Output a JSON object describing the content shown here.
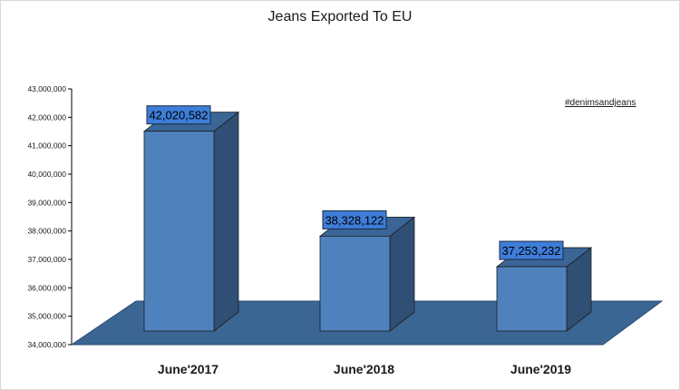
{
  "chart_data": {
    "type": "bar",
    "title": "Jeans Exported To EU",
    "annotation": "#denimsandjeans",
    "categories": [
      "June'2017",
      "June'2018",
      "June'2019"
    ],
    "values": [
      42020582,
      38328122,
      37253232
    ],
    "data_labels": [
      "42,020,582",
      "38,328,122",
      "37,253,232"
    ],
    "ylim": [
      34000000,
      43000000
    ],
    "yticks": [
      34000000,
      35000000,
      36000000,
      37000000,
      38000000,
      39000000,
      40000000,
      41000000,
      42000000,
      43000000
    ],
    "ytick_labels": [
      "34,000,000",
      "35,000,000",
      "36,000,000",
      "37,000,000",
      "38,000,000",
      "39,000,000",
      "40,000,000",
      "41,000,000",
      "42,000,000",
      "43,000,000"
    ],
    "xlabel": "",
    "ylabel": "",
    "grid": false,
    "style": "3d",
    "colors": {
      "bar_front": "#4f81bd",
      "bar_side": "#2f4f74",
      "bar_top": "#3a6597",
      "floor": "#3b6593",
      "label_box": "#3e7dd8"
    }
  }
}
